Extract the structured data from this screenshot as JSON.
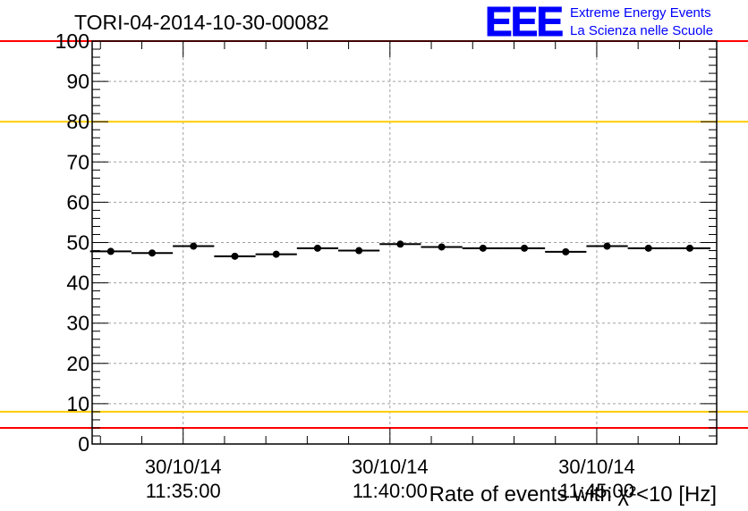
{
  "chart_data": {
    "type": "scatter",
    "title": "TORI-04-2014-10-30-00082",
    "xlabel": "Rate of events with χ²<10 [Hz]",
    "ylabel": "",
    "ylim": [
      0,
      100
    ],
    "yticks": [
      "0",
      "10",
      "20",
      "30",
      "40",
      "50",
      "60",
      "70",
      "80",
      "90",
      "100"
    ],
    "xlim_minutes": [
      32.8,
      47.9
    ],
    "xticks": [
      {
        "minute": 35,
        "date": "30/10/14",
        "time": "11:35:00"
      },
      {
        "minute": 40,
        "date": "30/10/14",
        "time": "11:40:00"
      },
      {
        "minute": 45,
        "date": "30/10/14",
        "time": "11:45:00"
      }
    ],
    "grid": true,
    "points": {
      "x_minutes": [
        33.25,
        34.25,
        35.25,
        36.25,
        37.25,
        38.25,
        39.25,
        40.25,
        41.25,
        42.25,
        43.25,
        44.25,
        45.25,
        46.25,
        47.25
      ],
      "y": [
        47.8,
        47.4,
        49.1,
        46.6,
        47.1,
        48.6,
        48.0,
        49.6,
        48.9,
        48.6,
        48.6,
        47.7,
        49.1,
        48.6,
        48.6
      ],
      "bin_half_width_minutes": 0.5
    },
    "reference_lines": [
      {
        "y": 100,
        "color": "#ff0000"
      },
      {
        "y": 80,
        "color": "#ffcc00"
      },
      {
        "y": 8,
        "color": "#ffcc00"
      },
      {
        "y": 4,
        "color": "#ff0000"
      }
    ]
  },
  "logo": {
    "mark": "EEE",
    "line1": "Extreme Energy Events",
    "line2": "La Scienza nelle Scuole",
    "color": "#0000ff"
  }
}
